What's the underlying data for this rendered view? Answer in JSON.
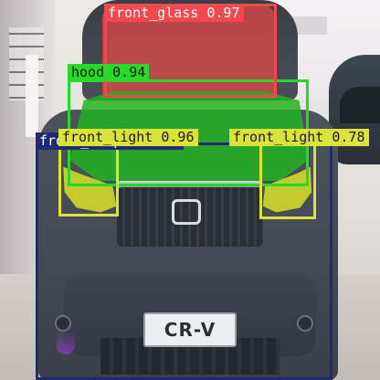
{
  "image": {
    "subject": "front of a dark grey SUV in a car showroom",
    "plate_text": "CR-V"
  },
  "detections": [
    {
      "label": "front_glass",
      "score": "0.97",
      "tag": "front_glass 0.97",
      "color": "#f1494d"
    },
    {
      "label": "hood",
      "score": "0.94",
      "tag": "hood 0.94",
      "color": "#27da27"
    },
    {
      "label": "front_bumper",
      "score": "0.95",
      "tag": "front_bumper 0.95",
      "color": "#1e2a74"
    },
    {
      "label": "front_light",
      "score": "0.96",
      "tag": "front_light 0.96",
      "color": "#dde23a"
    },
    {
      "label": "front_light",
      "score": "0.78",
      "tag": "front_light 0.78",
      "color": "#dde23a"
    }
  ]
}
